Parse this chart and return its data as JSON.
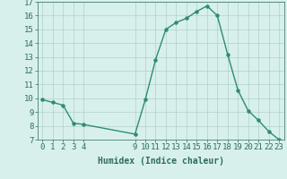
{
  "title": "",
  "xlabel": "Humidex (Indice chaleur)",
  "ylabel": "",
  "x": [
    0,
    1,
    2,
    3,
    4,
    9,
    10,
    11,
    12,
    13,
    14,
    15,
    16,
    17,
    18,
    19,
    20,
    21,
    22,
    23
  ],
  "y": [
    9.9,
    9.7,
    9.5,
    8.2,
    8.1,
    7.4,
    9.9,
    12.8,
    15.0,
    15.5,
    15.8,
    16.3,
    16.7,
    16.0,
    13.2,
    10.6,
    9.1,
    8.4,
    7.6,
    7.0
  ],
  "line_color": "#2e8b74",
  "bg_color": "#d8f0ec",
  "grid_color": "#b0cfc8",
  "ylim": [
    7,
    17
  ],
  "xlim": [
    -0.5,
    23.5
  ],
  "yticks": [
    7,
    8,
    9,
    10,
    11,
    12,
    13,
    14,
    15,
    16,
    17
  ],
  "xticks": [
    0,
    1,
    2,
    3,
    4,
    9,
    10,
    11,
    12,
    13,
    14,
    15,
    16,
    17,
    18,
    19,
    20,
    21,
    22,
    23
  ],
  "tick_color": "#2e6b5e",
  "label_fontsize": 6.5,
  "marker": "o",
  "marker_size": 2.2,
  "line_width": 1.0
}
